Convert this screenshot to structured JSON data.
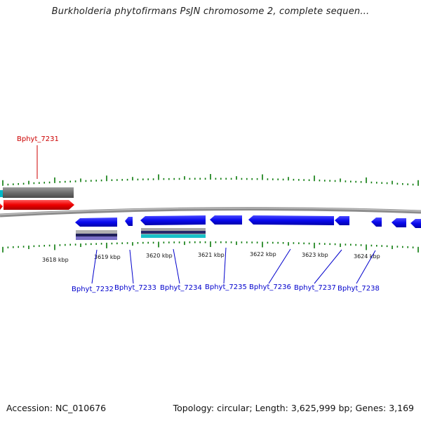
{
  "title": "Burkholderia phytofirmans PsJN chromosome 2, complete sequen...",
  "footer": {
    "accession": "Accession: NC_010676",
    "topology": "Topology: circular; Length: 3,625,999 bp; Genes: 3,169"
  },
  "scale_labels": [
    "3618 kbp",
    "3619 kbp",
    "3620 kbp",
    "3621 kbp",
    "3622 kbp",
    "3623 kbp",
    "3624 kbp"
  ],
  "gene_labels": {
    "forward": [
      "Bphyt_7231"
    ],
    "reverse": [
      "Bphyt_7232",
      "Bphyt_7233",
      "Bphyt_7234",
      "Bphyt_7235",
      "Bphyt_7236",
      "Bphyt_7237",
      "Bphyt_7238"
    ]
  },
  "colors": {
    "forward_label": "#cc0000",
    "reverse_label": "#0000cc",
    "gene_blue": "#0a0aee",
    "gene_red": "#ee0000",
    "feature_gray": "#6e6e6e",
    "tick_green": "#0a7a0a",
    "backbone": "#8c8c8c"
  }
}
